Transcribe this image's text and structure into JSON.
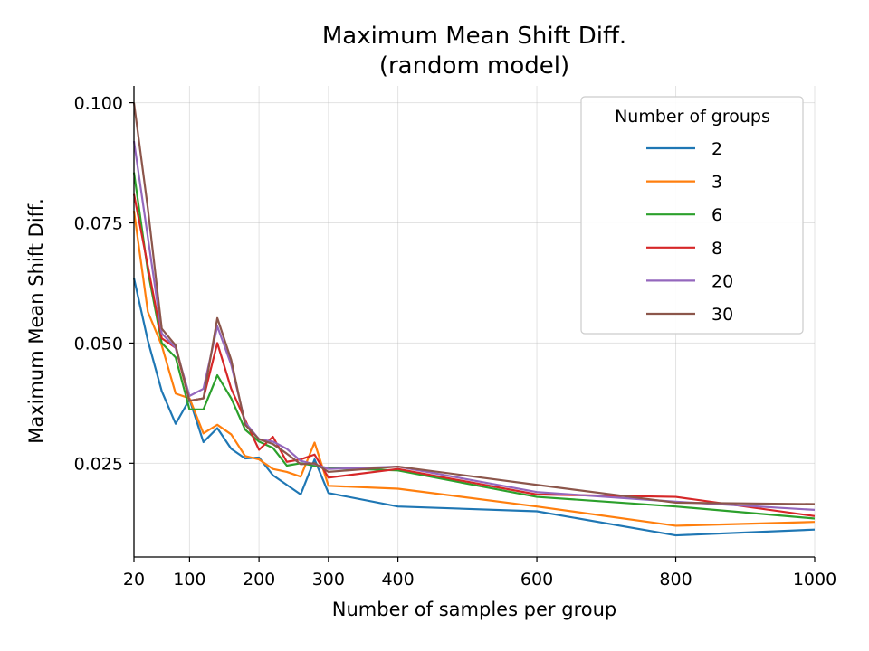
{
  "chart_data": {
    "type": "line",
    "title": "Maximum Mean Shift Diff.",
    "subtitle": "(random model)",
    "xlabel": "Number of samples per group",
    "ylabel": "Maximum Mean Shift Diff.",
    "xlim": [
      20,
      1000
    ],
    "ylim": [
      0.0055,
      0.1035
    ],
    "x_ticks": [
      20,
      100,
      200,
      300,
      400,
      600,
      800,
      1000
    ],
    "y_ticks": [
      0.025,
      0.05,
      0.075,
      0.1
    ],
    "x_tick_labels": [
      "20",
      "100",
      "200",
      "300",
      "400",
      "600",
      "800",
      "1000"
    ],
    "y_tick_labels": [
      "0.025",
      "0.050",
      "0.075",
      "0.100"
    ],
    "grid": true,
    "legend": {
      "title": "Number of groups",
      "placement": "top-right"
    },
    "x": [
      20,
      40,
      60,
      80,
      100,
      120,
      140,
      160,
      180,
      200,
      220,
      240,
      260,
      280,
      300,
      400,
      600,
      800,
      1000
    ],
    "series": [
      {
        "name": "2",
        "color": "#1f77b4",
        "values": [
          0.0635,
          0.0505,
          0.04,
          0.0332,
          0.0383,
          0.0294,
          0.0323,
          0.028,
          0.026,
          0.0262,
          0.0225,
          0.0205,
          0.0185,
          0.0258,
          0.0188,
          0.016,
          0.015,
          0.01,
          0.0112
        ]
      },
      {
        "name": "3",
        "color": "#ff7f0e",
        "values": [
          0.0775,
          0.0565,
          0.0495,
          0.0395,
          0.0385,
          0.0312,
          0.033,
          0.031,
          0.0265,
          0.0258,
          0.0238,
          0.0232,
          0.0222,
          0.0293,
          0.0203,
          0.0197,
          0.016,
          0.012,
          0.0128
        ]
      },
      {
        "name": "6",
        "color": "#2ca02c",
        "values": [
          0.0855,
          0.065,
          0.05,
          0.047,
          0.0362,
          0.0362,
          0.0433,
          0.0385,
          0.032,
          0.0295,
          0.0282,
          0.0245,
          0.025,
          0.0245,
          0.024,
          0.0235,
          0.018,
          0.016,
          0.0135
        ]
      },
      {
        "name": "8",
        "color": "#d62728",
        "values": [
          0.081,
          0.066,
          0.051,
          0.049,
          0.038,
          0.0385,
          0.05,
          0.0405,
          0.034,
          0.0278,
          0.0305,
          0.0253,
          0.0258,
          0.0268,
          0.022,
          0.0238,
          0.0185,
          0.018,
          0.014
        ]
      },
      {
        "name": "20",
        "color": "#9467bd",
        "values": [
          0.092,
          0.072,
          0.052,
          0.049,
          0.039,
          0.0405,
          0.0535,
          0.0455,
          0.0335,
          0.03,
          0.0295,
          0.028,
          0.0255,
          0.0248,
          0.0238,
          0.0243,
          0.019,
          0.017,
          0.0153
        ]
      },
      {
        "name": "30",
        "color": "#8c564b",
        "values": [
          0.1,
          0.078,
          0.053,
          0.0495,
          0.038,
          0.0385,
          0.0552,
          0.0465,
          0.033,
          0.03,
          0.029,
          0.027,
          0.0248,
          0.025,
          0.0232,
          0.0243,
          0.0205,
          0.0168,
          0.0165
        ]
      }
    ]
  }
}
